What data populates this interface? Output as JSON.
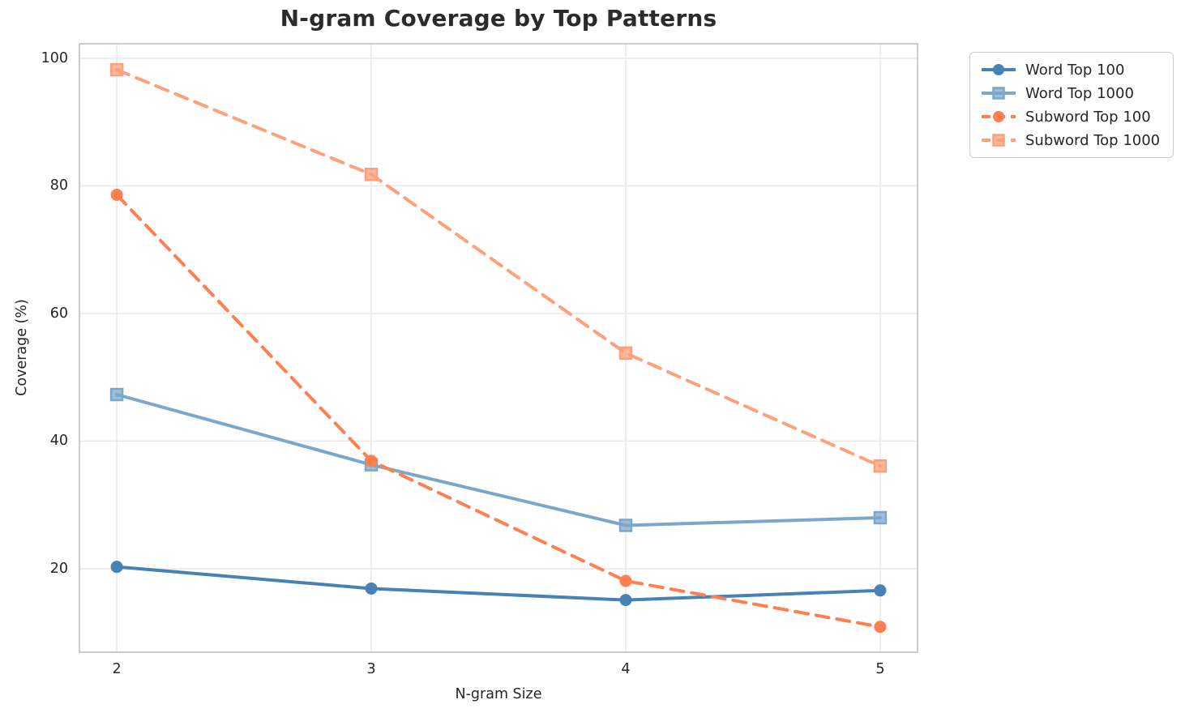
{
  "title": "N-gram Coverage by Top Patterns",
  "chart_data": {
    "type": "line",
    "title": "N-gram Coverage by Top Patterns",
    "xlabel": "N-gram Size",
    "ylabel": "Coverage (%)",
    "x": [
      2,
      3,
      4,
      5
    ],
    "xticks": [
      2,
      3,
      4,
      5
    ],
    "yticks": [
      20,
      40,
      60,
      80,
      100
    ],
    "xlim": [
      1.85,
      5.15
    ],
    "ylim": [
      6.8,
      102.4
    ],
    "grid": true,
    "legend_position": "outside-top-right",
    "series": [
      {
        "name": "Word Top 100",
        "values": [
          20.3,
          16.9,
          15.1,
          16.6
        ],
        "color": "#4682B4",
        "style": "solid",
        "marker": "circle"
      },
      {
        "name": "Word Top 1000",
        "values": [
          47.3,
          36.3,
          26.8,
          28.0
        ],
        "color": "#7DA7CA",
        "style": "solid",
        "marker": "square"
      },
      {
        "name": "Subword Top 100",
        "values": [
          78.6,
          36.9,
          18.1,
          10.9
        ],
        "color": "#FF7F50",
        "style": "dashed",
        "marker": "circle"
      },
      {
        "name": "Subword Top 1000",
        "values": [
          98.2,
          81.8,
          53.8,
          36.1
        ],
        "color": "#FFA07A",
        "style": "dashed",
        "marker": "square"
      }
    ],
    "style": {
      "grid_color": "#e9e9e9",
      "spine_color": "#cccccc",
      "background": "#ffffff",
      "text_color": "#262626",
      "title_color": "#2b2b2b"
    }
  }
}
